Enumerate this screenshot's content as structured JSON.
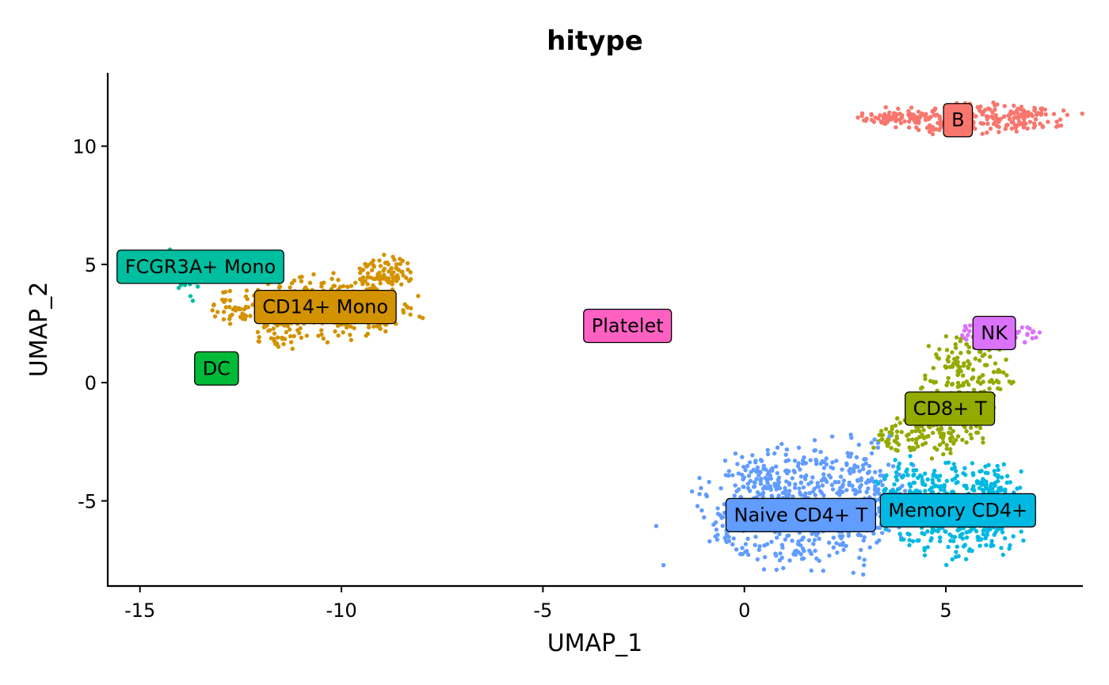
{
  "chart_data": {
    "type": "scatter",
    "title": "hitype",
    "xlabel": "UMAP_1",
    "ylabel": "UMAP_2",
    "xlim": [
      -15.8,
      8.4
    ],
    "ylim": [
      -8.6,
      13.1
    ],
    "x_ticks": [
      {
        "value": -15,
        "label": "-15"
      },
      {
        "value": -10,
        "label": "-10"
      },
      {
        "value": -5,
        "label": "-5"
      },
      {
        "value": 0,
        "label": "0"
      },
      {
        "value": 5,
        "label": "5"
      }
    ],
    "y_ticks": [
      {
        "value": -5,
        "label": "-5"
      },
      {
        "value": 0,
        "label": "0"
      },
      {
        "value": 5,
        "label": "5"
      },
      {
        "value": 10,
        "label": "10"
      }
    ],
    "legend": "none",
    "grid": false,
    "clusters": [
      {
        "name": "B",
        "color": "#F8766D",
        "label_x": 5.3,
        "label_y": 11.1,
        "blobs": [
          {
            "cx": 5.6,
            "cy": 11.2,
            "rx": 1.9,
            "ry": 0.5,
            "n": 260
          },
          {
            "cx": 3.8,
            "cy": 11.2,
            "rx": 0.7,
            "ry": 0.2,
            "n": 40
          },
          {
            "cx": 7.0,
            "cy": 11.4,
            "rx": 0.35,
            "ry": 0.2,
            "n": 25
          }
        ]
      },
      {
        "name": "FCGR3A+ Mono",
        "color": "#00BFA0",
        "label_x": -13.5,
        "label_y": 4.9,
        "blobs": [
          {
            "cx": -14.3,
            "cy": 5.2,
            "rx": 0.6,
            "ry": 0.35,
            "n": 30
          },
          {
            "cx": -13.8,
            "cy": 4.3,
            "rx": 0.3,
            "ry": 0.6,
            "n": 20
          }
        ]
      },
      {
        "name": "CD14+ Mono",
        "color": "#D39200",
        "label_x": -10.4,
        "label_y": 3.2,
        "blobs": [
          {
            "cx": -10.2,
            "cy": 3.2,
            "rx": 1.6,
            "ry": 1.0,
            "n": 260
          },
          {
            "cx": -8.9,
            "cy": 4.6,
            "rx": 0.55,
            "ry": 0.55,
            "n": 90
          },
          {
            "cx": -12.6,
            "cy": 3.2,
            "rx": 0.45,
            "ry": 0.6,
            "n": 45
          },
          {
            "cx": -11.6,
            "cy": 2.0,
            "rx": 0.5,
            "ry": 0.45,
            "n": 30
          }
        ]
      },
      {
        "name": "Platelet",
        "color": "#FF61C3",
        "label_x": -2.9,
        "label_y": 2.4,
        "blobs": []
      },
      {
        "name": "NK",
        "color": "#DB72FB",
        "label_x": 6.2,
        "label_y": 2.1,
        "blobs": [
          {
            "cx": 6.3,
            "cy": 2.1,
            "rx": 0.85,
            "ry": 0.35,
            "n": 90
          }
        ]
      },
      {
        "name": "DC",
        "color": "#00BA38",
        "label_x": -13.1,
        "label_y": 0.6,
        "blobs": []
      },
      {
        "name": "CD8+ T",
        "color": "#93AA00",
        "label_x": 5.1,
        "label_y": -1.1,
        "blobs": [
          {
            "cx": 5.5,
            "cy": 0.4,
            "rx": 0.85,
            "ry": 1.4,
            "n": 150
          },
          {
            "cx": 4.7,
            "cy": -2.1,
            "rx": 0.9,
            "ry": 0.75,
            "n": 120
          },
          {
            "cx": 3.6,
            "cy": -2.4,
            "rx": 0.35,
            "ry": 0.45,
            "n": 20
          }
        ]
      },
      {
        "name": "Naive CD4+ T",
        "color": "#619CFF",
        "label_x": 1.4,
        "label_y": -5.6,
        "blobs": [
          {
            "cx": 1.2,
            "cy": -5.3,
            "rx": 1.8,
            "ry": 1.9,
            "n": 430
          },
          {
            "cx": 2.9,
            "cy": -4.9,
            "rx": 0.9,
            "ry": 2.2,
            "n": 170
          },
          {
            "cx": 0.4,
            "cy": -4.0,
            "rx": 0.6,
            "ry": 0.7,
            "n": 50
          }
        ]
      },
      {
        "name": "Memory CD4+",
        "color": "#00B9E3",
        "label_x": 5.3,
        "label_y": -5.4,
        "blobs": [
          {
            "cx": 5.3,
            "cy": -5.5,
            "rx": 1.3,
            "ry": 1.5,
            "n": 360
          },
          {
            "cx": 6.3,
            "cy": -5.0,
            "rx": 0.6,
            "ry": 1.2,
            "n": 90
          },
          {
            "cx": 4.1,
            "cy": -4.2,
            "rx": 0.6,
            "ry": 0.8,
            "n": 60
          }
        ]
      }
    ]
  }
}
